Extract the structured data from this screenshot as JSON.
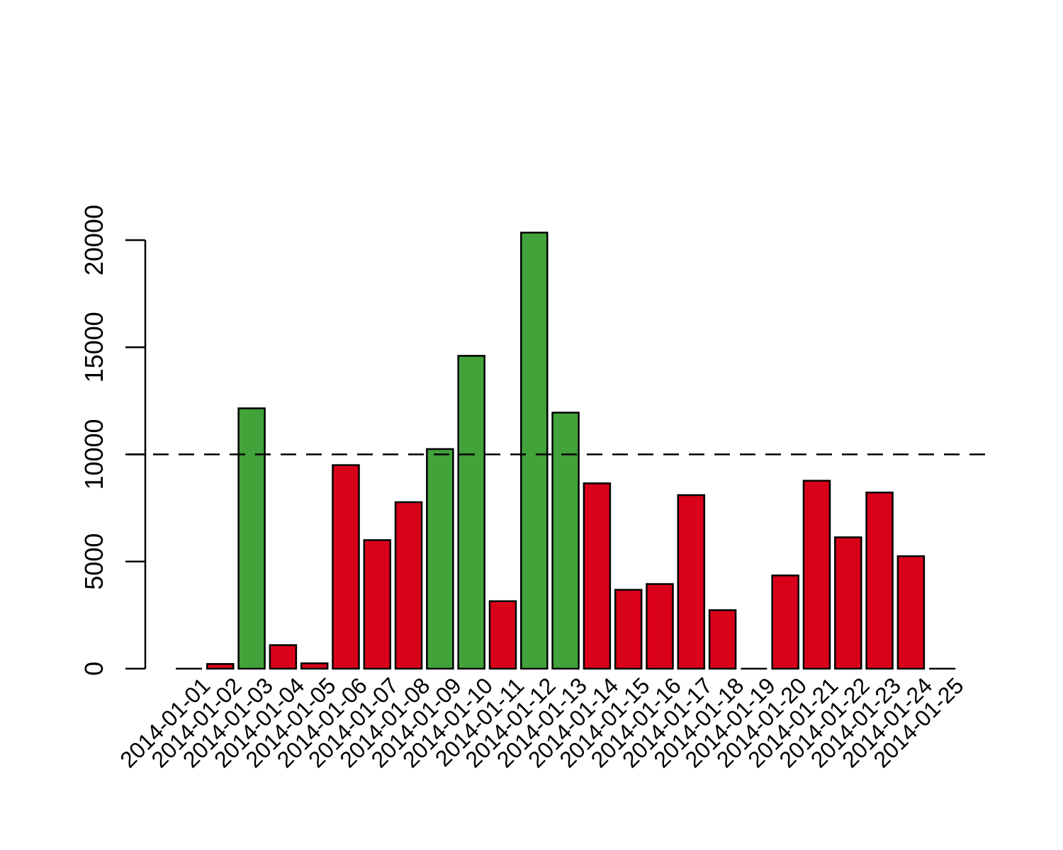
{
  "chart_data": {
    "type": "bar",
    "title": "",
    "xlabel": "",
    "ylabel": "",
    "ylim": [
      0,
      20000
    ],
    "y_ticks": [
      0,
      5000,
      10000,
      15000,
      20000
    ],
    "reference_line": {
      "value": 10000,
      "style": "dashed"
    },
    "threshold_colors": {
      "above": "#41a33a",
      "below": "#d9001a"
    },
    "categories": [
      "2014-01-01",
      "2014-01-02",
      "2014-01-03",
      "2014-01-04",
      "2014-01-05",
      "2014-01-06",
      "2014-01-07",
      "2014-01-08",
      "2014-01-09",
      "2014-01-10",
      "2014-01-11",
      "2014-01-12",
      "2014-01-13",
      "2014-01-14",
      "2014-01-15",
      "2014-01-16",
      "2014-01-17",
      "2014-01-18",
      "2014-01-19",
      "2014-01-20",
      "2014-01-21",
      "2014-01-22",
      "2014-01-23",
      "2014-01-24",
      "2014-01-25"
    ],
    "values": [
      0,
      220,
      12150,
      1100,
      250,
      9500,
      6000,
      7770,
      10250,
      14600,
      3150,
      20350,
      11950,
      8650,
      3680,
      3950,
      8100,
      2730,
      0,
      4350,
      8770,
      6130,
      8220,
      5250,
      0
    ],
    "tick_labels_shown": [
      "2014-01-01",
      "2014-01-02",
      "2014-01-03",
      "2014-01-04",
      "2014-01-05",
      "2014-01-06",
      "2014-01-07",
      "2014-01-08",
      "2014-01-09",
      "2014-01-10",
      "2014-01-11",
      "2014-01-12",
      "2014-01-13",
      "2014-01-14",
      "2014-01-15",
      "2014-01-16",
      "2014-01-17",
      "2014-01-18",
      "2014-01-19",
      "2014-01-20",
      "2014-01-21",
      "2014-01-22",
      "2014-01-23",
      "2014-01-24",
      "2014-01-25"
    ]
  }
}
